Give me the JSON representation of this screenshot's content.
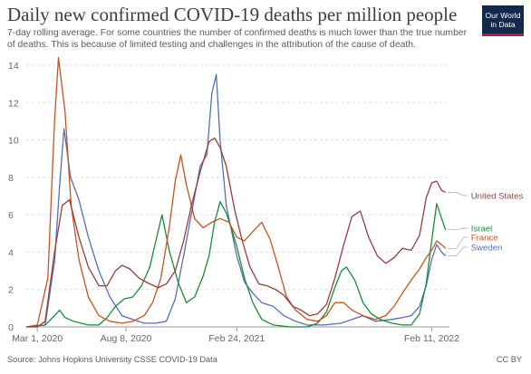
{
  "header": {
    "title": "Daily new confirmed COVID-19 deaths per million people",
    "subtitle": "7-day rolling average. For some countries the number of confirmed deaths is much lower than the true number of deaths. This is because of limited testing and challenges in the attribution of the cause of death."
  },
  "logo": {
    "line1": "Our World",
    "line2": "in Data"
  },
  "footer": {
    "source": "Source: Johns Hopkins University CSSE COVID-19 Data",
    "license": "CC BY"
  },
  "colors": {
    "United States": "#9b3b3b",
    "Israel": "#1a8a3a",
    "France": "#c8521f",
    "Sweden": "#5470b5",
    "grid": "#dddddd",
    "axis": "#999999"
  },
  "chart_data": {
    "type": "line",
    "title": "Daily new confirmed COVID-19 deaths per million people",
    "xlabel": "",
    "ylabel": "",
    "ylim": [
      0,
      14
    ],
    "yticks": [
      0,
      2,
      4,
      6,
      8,
      10,
      12,
      14
    ],
    "xlim": [
      "2020-02-10",
      "2022-03-15"
    ],
    "xticks": [
      {
        "date": "2020-03-01",
        "label": "Mar 1, 2020"
      },
      {
        "date": "2020-08-08",
        "label": "Aug 8, 2020"
      },
      {
        "date": "2021-02-24",
        "label": "Feb 24, 2021"
      },
      {
        "date": "2022-02-11",
        "label": "Feb 11, 2022"
      }
    ],
    "grid": "horizontal",
    "legend": "right-end labels",
    "series": [
      {
        "name": "United States",
        "x": [
          "2020-02-10",
          "2020-03-01",
          "2020-03-15",
          "2020-04-01",
          "2020-04-15",
          "2020-04-28",
          "2020-05-15",
          "2020-06-01",
          "2020-06-20",
          "2020-07-05",
          "2020-07-20",
          "2020-08-01",
          "2020-08-15",
          "2020-09-01",
          "2020-09-20",
          "2020-10-05",
          "2020-10-20",
          "2020-11-05",
          "2020-11-20",
          "2020-12-05",
          "2020-12-20",
          "2021-01-05",
          "2021-01-15",
          "2021-01-25",
          "2021-02-05",
          "2021-02-20",
          "2021-03-05",
          "2021-03-20",
          "2021-04-05",
          "2021-04-20",
          "2021-05-05",
          "2021-05-20",
          "2021-06-05",
          "2021-06-20",
          "2021-07-05",
          "2021-07-20",
          "2021-08-05",
          "2021-08-20",
          "2021-09-05",
          "2021-09-20",
          "2021-10-05",
          "2021-10-20",
          "2021-11-05",
          "2021-11-20",
          "2021-12-05",
          "2021-12-20",
          "2022-01-05",
          "2022-01-20",
          "2022-02-01",
          "2022-02-11",
          "2022-02-20",
          "2022-03-01",
          "2022-03-08"
        ],
        "y": [
          0,
          0,
          0.3,
          4.0,
          6.5,
          6.8,
          4.8,
          3.2,
          2.2,
          2.2,
          3.0,
          3.3,
          3.1,
          2.6,
          2.3,
          2.1,
          2.3,
          3.0,
          4.6,
          6.6,
          8.3,
          9.9,
          10.1,
          9.6,
          8.6,
          6.3,
          4.7,
          3.2,
          2.3,
          2.2,
          2.0,
          1.7,
          1.1,
          0.9,
          0.6,
          0.7,
          1.2,
          2.6,
          4.4,
          5.9,
          6.2,
          4.8,
          3.8,
          3.4,
          3.7,
          4.2,
          4.1,
          4.9,
          6.9,
          7.7,
          7.8,
          7.3,
          7.2
        ]
      },
      {
        "name": "Israel",
        "x": [
          "2020-02-10",
          "2020-03-15",
          "2020-04-01",
          "2020-04-10",
          "2020-04-20",
          "2020-05-05",
          "2020-06-01",
          "2020-06-20",
          "2020-07-05",
          "2020-07-20",
          "2020-08-05",
          "2020-08-20",
          "2020-09-05",
          "2020-09-20",
          "2020-10-01",
          "2020-10-12",
          "2020-10-25",
          "2020-11-10",
          "2020-11-25",
          "2020-12-10",
          "2020-12-25",
          "2021-01-05",
          "2021-01-15",
          "2021-01-25",
          "2021-02-05",
          "2021-02-15",
          "2021-02-24",
          "2021-03-10",
          "2021-03-25",
          "2021-04-10",
          "2021-05-01",
          "2021-06-01",
          "2021-07-01",
          "2021-07-20",
          "2021-08-05",
          "2021-08-20",
          "2021-09-01",
          "2021-09-10",
          "2021-09-25",
          "2021-10-10",
          "2021-10-25",
          "2021-11-10",
          "2021-12-01",
          "2021-12-20",
          "2022-01-05",
          "2022-01-20",
          "2022-02-01",
          "2022-02-11",
          "2022-02-20",
          "2022-03-01",
          "2022-03-08"
        ],
        "y": [
          0,
          0.1,
          0.6,
          0.9,
          0.5,
          0.3,
          0.1,
          0.1,
          0.5,
          1.1,
          1.5,
          1.6,
          2.2,
          3.2,
          4.6,
          6.0,
          4.1,
          2.4,
          1.3,
          1.6,
          2.7,
          3.8,
          5.6,
          6.7,
          6.1,
          5.2,
          4.3,
          2.6,
          1.3,
          0.4,
          0.1,
          0,
          0,
          0.2,
          0.8,
          2.1,
          3.0,
          3.2,
          2.5,
          1.3,
          0.7,
          0.4,
          0.2,
          0.1,
          0.1,
          0.7,
          2.3,
          4.6,
          6.6,
          5.8,
          5.2
        ]
      },
      {
        "name": "France",
        "x": [
          "2020-02-10",
          "2020-03-01",
          "2020-03-20",
          "2020-04-01",
          "2020-04-08",
          "2020-04-20",
          "2020-05-01",
          "2020-05-15",
          "2020-06-01",
          "2020-06-20",
          "2020-07-10",
          "2020-08-01",
          "2020-08-20",
          "2020-09-10",
          "2020-09-25",
          "2020-10-10",
          "2020-10-25",
          "2020-11-05",
          "2020-11-15",
          "2020-11-25",
          "2020-12-10",
          "2020-12-25",
          "2021-01-10",
          "2021-01-25",
          "2021-02-10",
          "2021-02-24",
          "2021-03-10",
          "2021-03-25",
          "2021-04-10",
          "2021-04-25",
          "2021-05-10",
          "2021-05-25",
          "2021-06-10",
          "2021-07-01",
          "2021-07-20",
          "2021-08-05",
          "2021-08-20",
          "2021-09-05",
          "2021-09-20",
          "2021-10-10",
          "2021-11-01",
          "2021-11-20",
          "2021-12-05",
          "2021-12-20",
          "2022-01-05",
          "2022-01-20",
          "2022-02-01",
          "2022-02-11",
          "2022-02-20",
          "2022-03-01",
          "2022-03-08"
        ],
        "y": [
          0,
          0.1,
          2.6,
          11.0,
          14.4,
          11.5,
          6.5,
          3.6,
          1.6,
          0.6,
          0.3,
          0.2,
          0.3,
          0.6,
          1.3,
          2.6,
          5.3,
          7.8,
          9.2,
          7.6,
          5.8,
          5.3,
          5.6,
          5.8,
          5.6,
          4.8,
          4.6,
          5.1,
          5.6,
          4.7,
          3.2,
          1.6,
          0.9,
          0.4,
          0.3,
          0.6,
          1.3,
          1.3,
          0.9,
          0.6,
          0.4,
          0.6,
          1.1,
          1.8,
          2.5,
          3.1,
          3.7,
          4.1,
          4.6,
          4.4,
          4.2
        ]
      },
      {
        "name": "Sweden",
        "x": [
          "2020-02-10",
          "2020-03-15",
          "2020-04-01",
          "2020-04-10",
          "2020-04-18",
          "2020-04-30",
          "2020-05-15",
          "2020-06-01",
          "2020-06-20",
          "2020-07-10",
          "2020-08-01",
          "2020-08-20",
          "2020-09-10",
          "2020-10-01",
          "2020-10-20",
          "2020-11-05",
          "2020-11-20",
          "2020-12-05",
          "2020-12-20",
          "2021-01-01",
          "2021-01-10",
          "2021-01-18",
          "2021-01-25",
          "2021-02-05",
          "2021-02-24",
          "2021-03-10",
          "2021-03-25",
          "2021-04-10",
          "2021-05-01",
          "2021-05-20",
          "2021-06-10",
          "2021-07-01",
          "2021-08-01",
          "2021-09-01",
          "2021-09-20",
          "2021-10-10",
          "2021-11-01",
          "2021-12-01",
          "2021-12-20",
          "2022-01-05",
          "2022-01-20",
          "2022-02-01",
          "2022-02-11",
          "2022-02-20",
          "2022-03-01",
          "2022-03-08"
        ],
        "y": [
          0,
          0.1,
          3.5,
          7.5,
          10.6,
          8.0,
          6.8,
          4.8,
          3.0,
          1.6,
          0.6,
          0.4,
          0.2,
          0.2,
          0.3,
          1.5,
          3.8,
          6.2,
          8.6,
          9.2,
          12.5,
          13.5,
          10.0,
          6.5,
          3.8,
          2.4,
          1.8,
          1.3,
          1.1,
          0.6,
          0.3,
          0.1,
          0.1,
          0.2,
          0.4,
          0.6,
          0.3,
          0.4,
          0.5,
          0.6,
          1.1,
          2.2,
          3.6,
          4.4,
          4.0,
          3.8
        ]
      }
    ]
  }
}
